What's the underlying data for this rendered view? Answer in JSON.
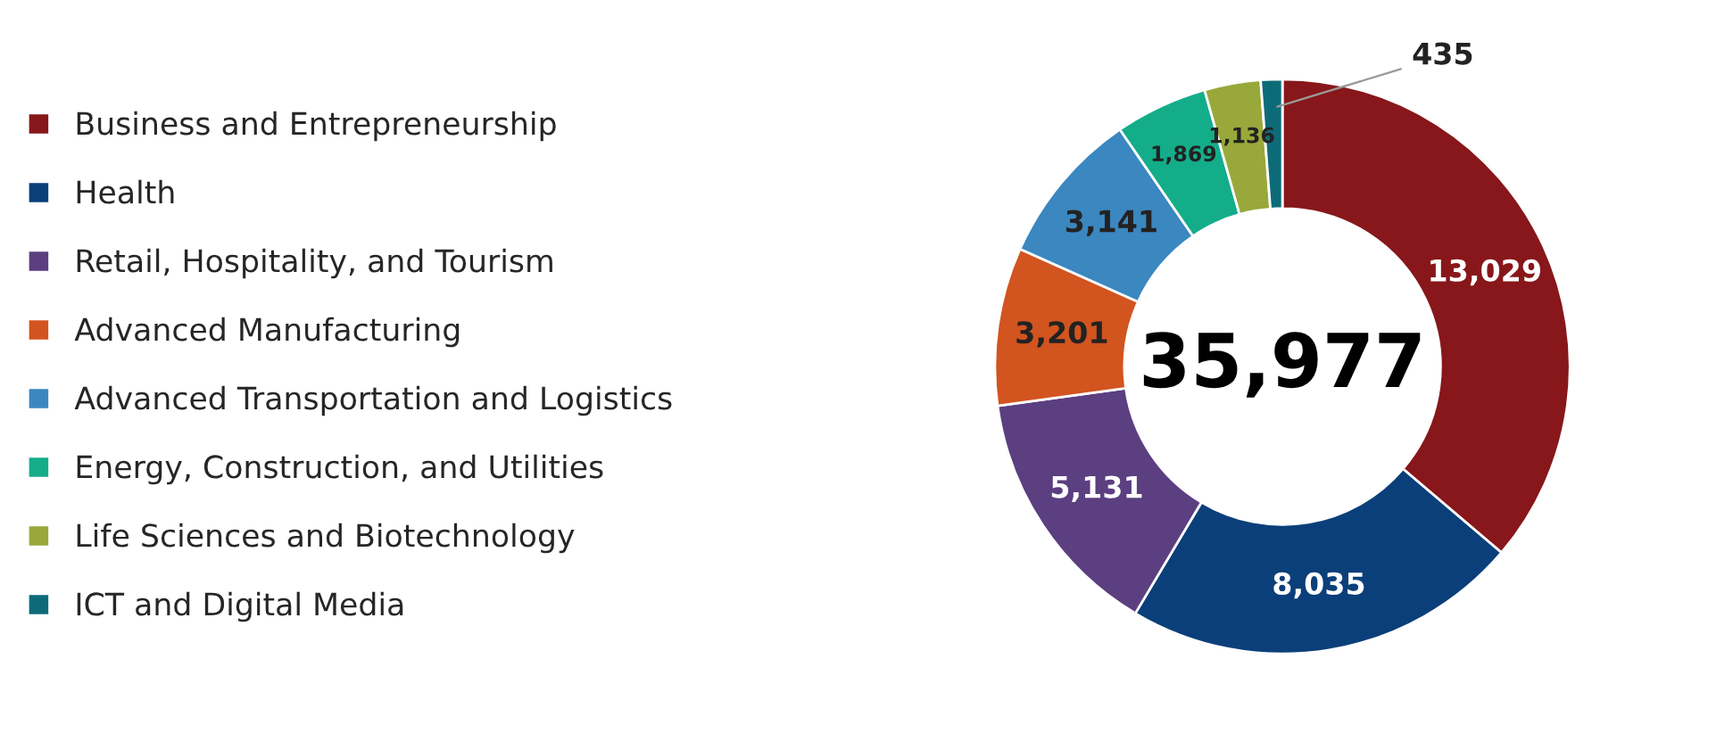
{
  "chart_data": {
    "type": "donut",
    "categories": [
      "Business and Entrepreneurship",
      "Health",
      "Retail, Hospitality, and Tourism",
      "Advanced Manufacturing",
      "Advanced Transportation and Logistics",
      "Energy, Construction, and Utilities",
      "Life Sciences and Biotechnology",
      "ICT and Digital Media"
    ],
    "values": [
      13029,
      8035,
      5131,
      3201,
      3141,
      1869,
      1136,
      435
    ],
    "colors": [
      "#87171a",
      "#0b3f7a",
      "#5b3f80",
      "#d2541f",
      "#3b87c0",
      "#14ad8a",
      "#99a83a",
      "#0d6b78"
    ],
    "value_labels": [
      "13,029",
      "8,035",
      "5,131",
      "3,201",
      "3,141",
      "1,869",
      "1,136",
      "435"
    ],
    "legend": "left",
    "annotations": [
      "35,977"
    ]
  }
}
